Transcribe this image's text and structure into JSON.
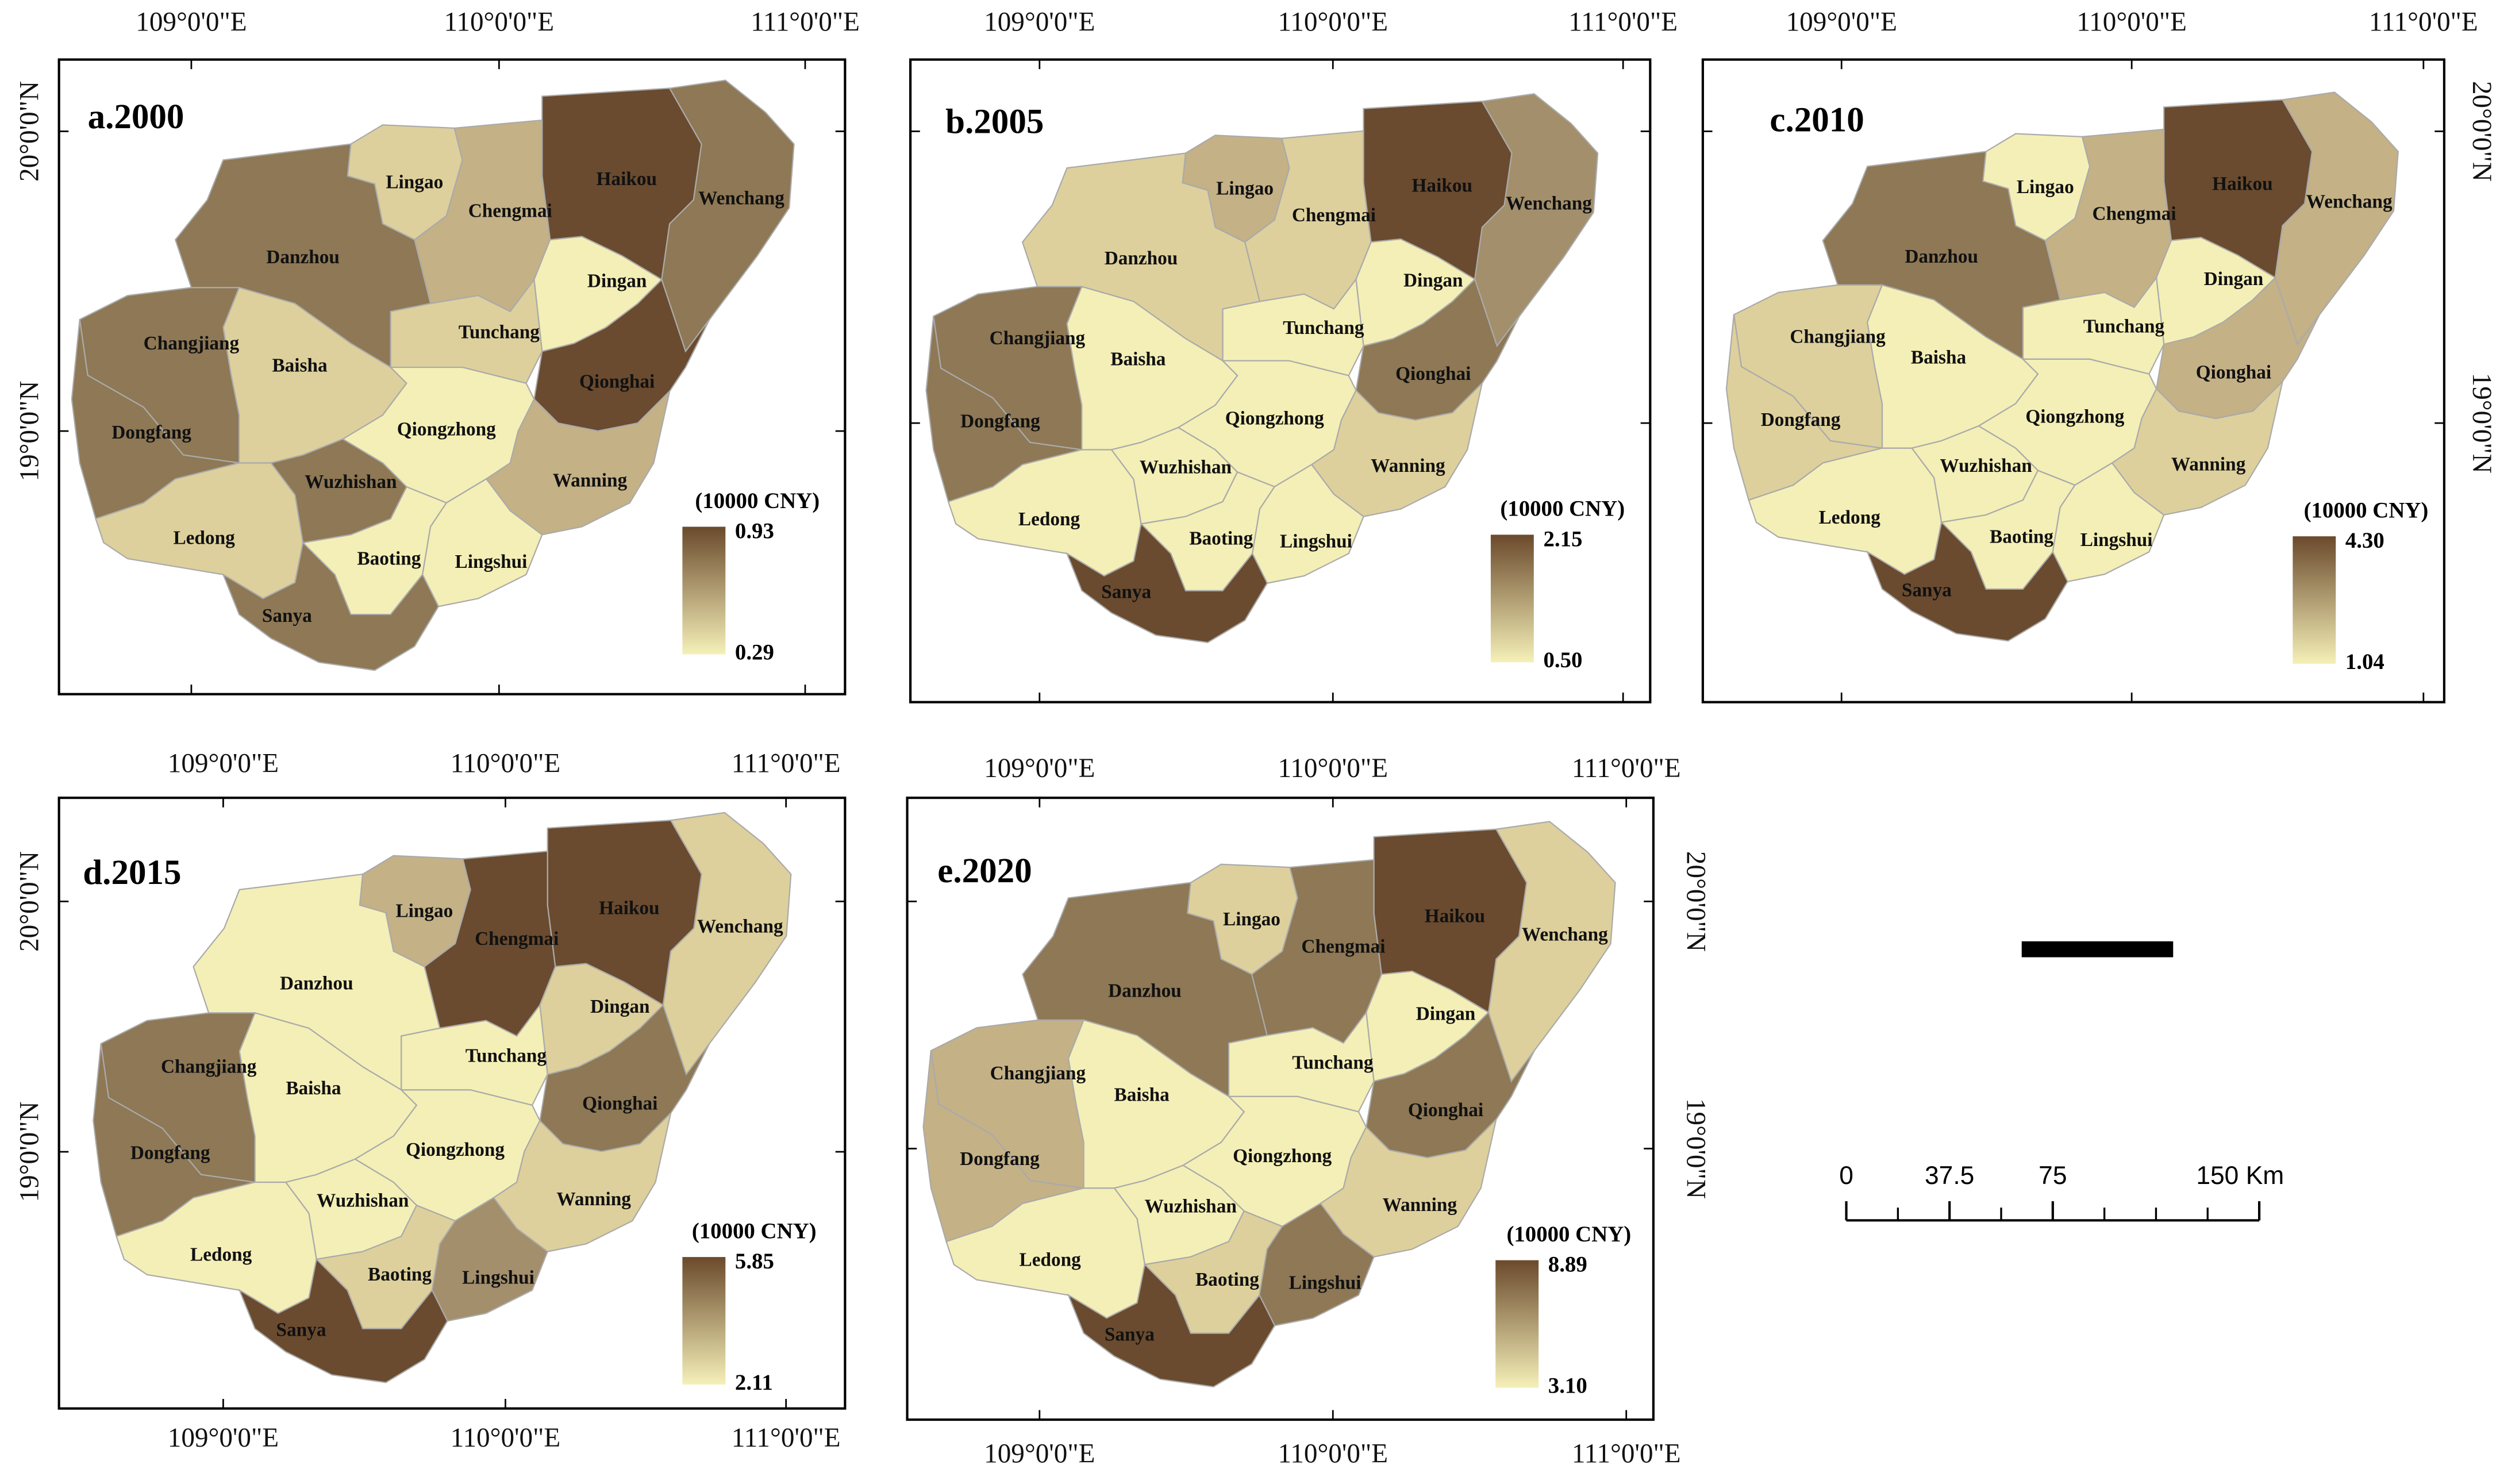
{
  "regions": [
    "Haikou",
    "Wenchang",
    "Lingao",
    "Chengmai",
    "Danzhou",
    "Dingan",
    "Tunchang",
    "Qionghai",
    "Changjiang",
    "Baisha",
    "Qiongzhong",
    "Dongfang",
    "Wuzhishan",
    "Wanning",
    "Ledong",
    "Baoting",
    "Lingshui",
    "Sanya"
  ],
  "unit": "(10000 CNY)",
  "lon_labels": [
    "109°0'0\"E",
    "110°0'0\"E",
    "111°0'0\"E"
  ],
  "lat_labels": [
    "20°0'0\"N",
    "19°0'0\"N"
  ],
  "legend_colors": [
    "#6b4a2c",
    "#f5f0b8"
  ],
  "panels": [
    {
      "title": "a.2000",
      "legend_max": 0.93,
      "legend_min": 0.29,
      "fills": [
        "#6a4b2f",
        "#8e7855",
        "#ddd09c",
        "#c4b186",
        "#8e7855",
        "#f4efb6",
        "#ddd09c",
        "#6a4b2f",
        "#8e7855",
        "#ddd09c",
        "#f4efb6",
        "#8e7855",
        "#8e7855",
        "#c4b186",
        "#ddd09c",
        "#f4efb6",
        "#f4efb6",
        "#8e7855"
      ]
    },
    {
      "title": "b.2005",
      "legend_max": 2.15,
      "legend_min": {
        "value": 0.5,
        "label": "0.50"
      },
      "fills": [
        "#6a4b2f",
        "#a38f6c",
        "#c4b186",
        "#ddd09c",
        "#ddd09c",
        "#f4efb6",
        "#f4efb6",
        "#8e7855",
        "#8e7855",
        "#f4efb6",
        "#f4efb6",
        "#8e7855",
        "#f4efb6",
        "#ddd09c",
        "#f4efb6",
        "#f4efb6",
        "#f4efb6",
        "#6a4b2f"
      ]
    },
    {
      "title": "c.2010",
      "legend_max": {
        "value": 4.3,
        "label": "4.30"
      },
      "legend_min": 1.04,
      "fills": [
        "#6a4b2f",
        "#c4b186",
        "#f4efb6",
        "#c4b186",
        "#8e7855",
        "#f4efb6",
        "#f4efb6",
        "#c4b186",
        "#ddd09c",
        "#f4efb6",
        "#f4efb6",
        "#ddd09c",
        "#f4efb6",
        "#ddd09c",
        "#f4efb6",
        "#f4efb6",
        "#f4efb6",
        "#6a4b2f"
      ]
    },
    {
      "title": "d.2015",
      "legend_max": 5.85,
      "legend_min": 2.11,
      "fills": [
        "#6a4b2f",
        "#ddd09c",
        "#c4b186",
        "#6a4b2f",
        "#f4efb6",
        "#ddd09c",
        "#f4efb6",
        "#8e7855",
        "#8e7855",
        "#f4efb6",
        "#f4efb6",
        "#8e7855",
        "#f4efb6",
        "#ddd09c",
        "#f4efb6",
        "#ddd09c",
        "#a38f6c",
        "#6a4b2f"
      ]
    },
    {
      "title": "e.2020",
      "legend_max": 8.89,
      "legend_min": {
        "value": 3.1,
        "label": "3.10"
      },
      "fills": [
        "#6a4b2f",
        "#ddd09c",
        "#ddd09c",
        "#8e7855",
        "#8e7855",
        "#f4efb6",
        "#f4efb6",
        "#8e7855",
        "#c4b186",
        "#f4efb6",
        "#f4efb6",
        "#c4b186",
        "#f4efb6",
        "#ddd09c",
        "#f4efb6",
        "#ddd09c",
        "#8e7855",
        "#6a4b2f"
      ]
    }
  ],
  "scale_bar": {
    "ticks": [
      0,
      37.5,
      75,
      {
        "value": 150,
        "label": "150 Km"
      }
    ]
  }
}
